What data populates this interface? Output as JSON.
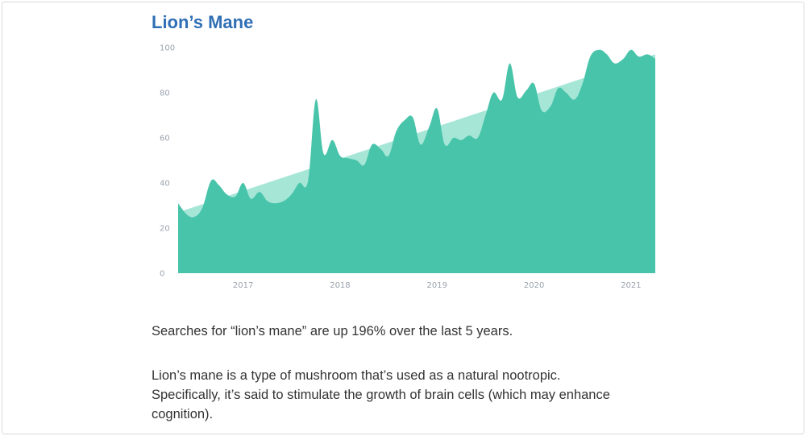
{
  "title": "Lion’s Mane",
  "colors": {
    "title": "#2f6fb5",
    "area": "#48c4ab",
    "trend": "#a6e6d7",
    "tick_text": "#9aa3ad",
    "body_text": "#333333"
  },
  "chart_data": {
    "type": "area",
    "title": "",
    "xlabel": "",
    "ylabel": "",
    "ylim": [
      0,
      100
    ],
    "xlim": [
      2016.33,
      2021.25
    ],
    "yticks": [
      0,
      20,
      40,
      60,
      80,
      100
    ],
    "xticks": [
      {
        "value": 2017,
        "label": "2017"
      },
      {
        "value": 2018,
        "label": "2018"
      },
      {
        "value": 2019,
        "label": "2019"
      },
      {
        "value": 2020,
        "label": "2020"
      },
      {
        "value": 2021,
        "label": "2021"
      }
    ],
    "grid": false,
    "legend": "none",
    "series": [
      {
        "x": [
          2016.33,
          2016.42,
          2016.5,
          2016.58,
          2016.67,
          2016.75,
          2016.83,
          2016.92,
          2017.0,
          2017.08,
          2017.17,
          2017.25,
          2017.33,
          2017.42,
          2017.5,
          2017.58,
          2017.67,
          2017.75,
          2017.83,
          2017.92,
          2018.0,
          2018.08,
          2018.17,
          2018.25,
          2018.33,
          2018.42,
          2018.5,
          2018.58,
          2018.67,
          2018.75,
          2018.83,
          2018.92,
          2019.0,
          2019.08,
          2019.17,
          2019.25,
          2019.33,
          2019.42,
          2019.5,
          2019.58,
          2019.67,
          2019.75,
          2019.83,
          2019.92,
          2020.0,
          2020.08,
          2020.17,
          2020.25,
          2020.33,
          2020.42,
          2020.5,
          2020.58,
          2020.67,
          2020.75,
          2020.83,
          2020.92,
          2021.0,
          2021.08,
          2021.17,
          2021.25
        ],
        "values": [
          31,
          26,
          25,
          29,
          41,
          39,
          35,
          34,
          40,
          33,
          36,
          32,
          31,
          32,
          35,
          40,
          41,
          77,
          53,
          59,
          52,
          51,
          50,
          48,
          57,
          55,
          52,
          63,
          68,
          69,
          57,
          65,
          73,
          57,
          60,
          59,
          61,
          60,
          70,
          80,
          77,
          93,
          78,
          81,
          84,
          72,
          74,
          82,
          80,
          77,
          84,
          96,
          99,
          97,
          93,
          95,
          99,
          96,
          97,
          95
        ]
      }
    ],
    "trend": {
      "x": [
        2016.33,
        2021.25
      ],
      "values": [
        27,
        97
      ]
    }
  },
  "text": {
    "p1": "Searches for “lion’s mane” are up 196% over the last 5 years.",
    "p2_lines": [
      "Lion’s mane is a type of mushroom that’s used as a natural nootropic.",
      "Specifically, it’s said to stimulate the growth of brain cells (which may enhance",
      "cognition)."
    ]
  }
}
